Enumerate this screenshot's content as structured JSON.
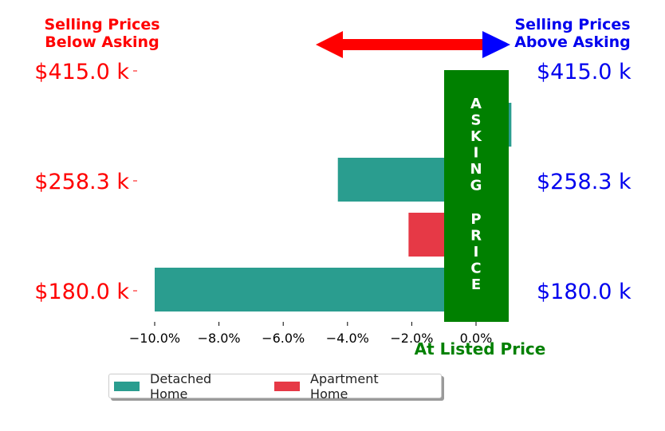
{
  "header": {
    "below_label": "Selling Prices\nBelow Asking",
    "above_label": "Selling Prices\nAbove Asking",
    "below_color": "#ff0000",
    "above_color": "#0000ee"
  },
  "arrow_color": "#ff0000",
  "arrow_head_right_color": "#0000ff",
  "asking_band": {
    "label": "ASKING PRICE",
    "color": "#008000"
  },
  "chart_data": {
    "type": "bar",
    "orientation": "horizontal",
    "xlabel": "At Listed Price",
    "xlabel_color": "#008000",
    "xlim": [
      -10.5,
      1.2
    ],
    "xticks": [
      -10,
      -8,
      -6,
      -4,
      -2,
      0
    ],
    "xtick_labels": [
      "−10.0%",
      "−8.0%",
      "−6.0%",
      "−4.0%",
      "−2.0%",
      "0.0%"
    ],
    "ytick_labels_left": [
      "$415.0 k",
      "$258.3 k",
      "$180.0 k"
    ],
    "ytick_labels_right": [
      "$415.0 k",
      "$258.3 k",
      "$180.0 k"
    ],
    "ytick_left_color": "#ff0000",
    "ytick_right_color": "#0000ee",
    "bars": [
      {
        "series": "Detached Home",
        "value": 1.1
      },
      {
        "series": "Detached Home",
        "value": -4.3
      },
      {
        "series": "Apartment Home",
        "value": -2.1
      },
      {
        "series": "Detached Home",
        "value": -10.0
      }
    ],
    "series": [
      {
        "name": "Detached Home",
        "color": "#2a9d8f"
      },
      {
        "name": "Apartment Home",
        "color": "#e63946"
      }
    ],
    "legend_position": "bottom-left"
  }
}
